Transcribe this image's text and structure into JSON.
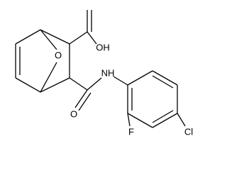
{
  "atoms": [
    {
      "label": "O"
    },
    {
      "label": "OH"
    },
    {
      "label": "NH"
    },
    {
      "label": "O"
    },
    {
      "label": "F"
    },
    {
      "label": "Cl"
    }
  ]
}
